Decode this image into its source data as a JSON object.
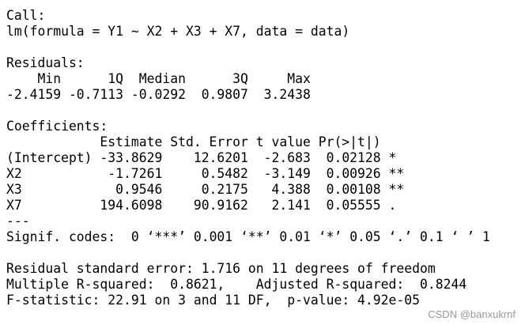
{
  "call": {
    "label": "Call:",
    "formula": "lm(formula = Y1 ~ X2 + X3 + X7, data = data)"
  },
  "residuals": {
    "label": "Residuals:",
    "columns": [
      "Min",
      "1Q",
      "Median",
      "3Q",
      "Max"
    ],
    "values": [
      "-2.4159",
      "-0.7113",
      "-0.0292",
      "0.9807",
      "3.2438"
    ]
  },
  "coefficients": {
    "label": "Coefficients:",
    "columns": [
      "Estimate",
      "Std. Error",
      "t value",
      "Pr(>|t|)"
    ],
    "rows": [
      {
        "name": "(Intercept)",
        "values": [
          "-33.8629",
          "12.6201",
          "-2.683",
          "0.02128"
        ],
        "signif": "*"
      },
      {
        "name": "X2",
        "values": [
          "-1.7261",
          "0.5482",
          "-3.149",
          "0.00926"
        ],
        "signif": "**"
      },
      {
        "name": "X3",
        "values": [
          "0.9546",
          "0.2175",
          "4.388",
          "0.00108"
        ],
        "signif": "**"
      },
      {
        "name": "X7",
        "values": [
          "194.6098",
          "90.9162",
          "2.141",
          "0.05555"
        ],
        "signif": "."
      }
    ]
  },
  "separator": "---",
  "signif_codes": "Signif. codes:  0 ‘***’ 0.001 ‘**’ 0.01 ‘*’ 0.05 ‘.’ 0.1 ‘ ’ 1",
  "summary": [
    "Residual standard error: 1.716 on 11 degrees of freedom",
    "Multiple R-squared:  0.8621,    Adjusted R-squared:  0.8244",
    "F-statistic: 22.91 on 3 and 11 DF,  p-value: 4.92e-05"
  ],
  "watermark": "CSDN @banxukrnf"
}
